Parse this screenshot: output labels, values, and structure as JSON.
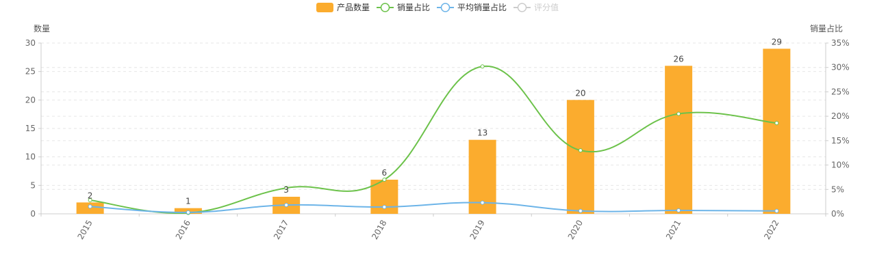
{
  "chart_data": {
    "type": "bar",
    "categories": [
      "2015",
      "2016",
      "2017",
      "2018",
      "2019",
      "2020",
      "2021",
      "2022"
    ],
    "legend": {
      "placement": "top-center",
      "items": [
        {
          "name": "产品数量",
          "kind": "bar",
          "color": "#FBAC2E",
          "active": true
        },
        {
          "name": "销量占比",
          "kind": "line",
          "color": "#6CC24A",
          "active": true
        },
        {
          "name": "平均销量占比",
          "kind": "line",
          "color": "#6CB4E8",
          "active": true
        },
        {
          "name": "评分值",
          "kind": "line",
          "color": "#CCCCCC",
          "active": false
        }
      ]
    },
    "y_left": {
      "label": "数量",
      "min": 0,
      "max": 30,
      "ticks": [
        0,
        5,
        10,
        15,
        20,
        25,
        30
      ]
    },
    "y_right": {
      "label": "销量占比",
      "min": 0,
      "max": 35,
      "unit": "%",
      "ticks": [
        0,
        5,
        10,
        15,
        20,
        25,
        30,
        35
      ]
    },
    "series": [
      {
        "name": "产品数量",
        "type": "bar",
        "axis": "left",
        "color": "#FBAC2E",
        "values": [
          2,
          1,
          3,
          6,
          13,
          20,
          26,
          29
        ],
        "labels": [
          "2",
          "1",
          "3",
          "6",
          "13",
          "20",
          "26",
          "29"
        ]
      },
      {
        "name": "销量占比",
        "type": "line",
        "axis": "right",
        "color": "#6CC24A",
        "values": [
          2.8,
          0.2,
          5.3,
          7.0,
          30.2,
          13.0,
          20.5,
          18.6
        ]
      },
      {
        "name": "平均销量占比",
        "type": "line",
        "axis": "right",
        "color": "#6CB4E8",
        "values": [
          1.5,
          0.3,
          1.8,
          1.4,
          2.3,
          0.6,
          0.7,
          0.6
        ]
      }
    ],
    "grid": true,
    "x_tick_rotation": -60
  }
}
